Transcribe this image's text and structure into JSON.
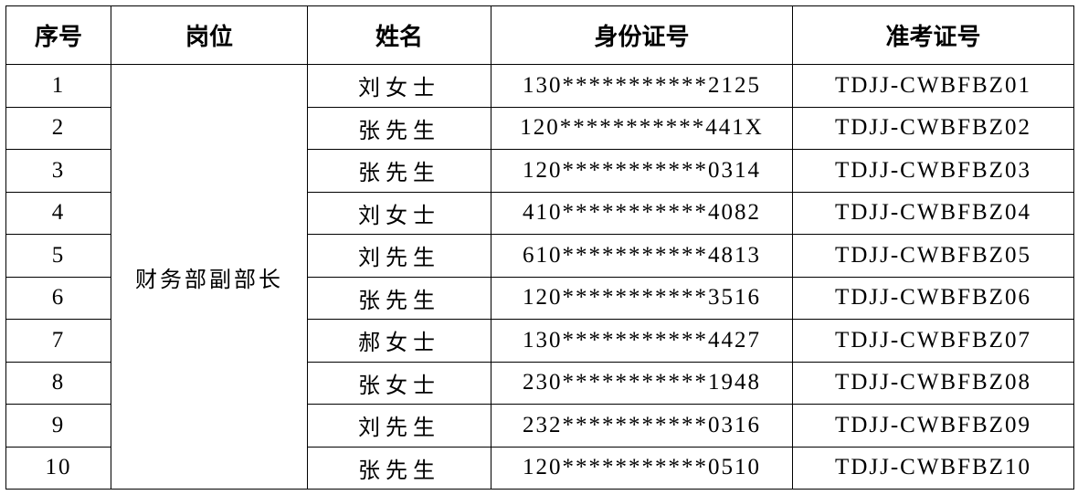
{
  "headers": [
    "序号",
    "岗位",
    "姓名",
    "身份证号",
    "准考证号"
  ],
  "position": "财务部副部长",
  "rows": [
    {
      "no": "1",
      "name": "刘女士",
      "id": "130***********2125",
      "exam": "TDJJ-CWBFBZ01"
    },
    {
      "no": "2",
      "name": "张先生",
      "id": "120***********441X",
      "exam": "TDJJ-CWBFBZ02"
    },
    {
      "no": "3",
      "name": "张先生",
      "id": "120***********0314",
      "exam": "TDJJ-CWBFBZ03"
    },
    {
      "no": "4",
      "name": "刘女士",
      "id": "410***********4082",
      "exam": "TDJJ-CWBFBZ04"
    },
    {
      "no": "5",
      "name": "刘先生",
      "id": "610***********4813",
      "exam": "TDJJ-CWBFBZ05"
    },
    {
      "no": "6",
      "name": "张先生",
      "id": "120***********3516",
      "exam": "TDJJ-CWBFBZ06"
    },
    {
      "no": "7",
      "name": "郝女士",
      "id": "130***********4427",
      "exam": "TDJJ-CWBFBZ07"
    },
    {
      "no": "8",
      "name": "张女士",
      "id": "230***********1948",
      "exam": "TDJJ-CWBFBZ08"
    },
    {
      "no": "9",
      "name": "刘先生",
      "id": "232***********0316",
      "exam": "TDJJ-CWBFBZ09"
    },
    {
      "no": "10",
      "name": "张先生",
      "id": "120***********0510",
      "exam": "TDJJ-CWBFBZ10"
    }
  ]
}
